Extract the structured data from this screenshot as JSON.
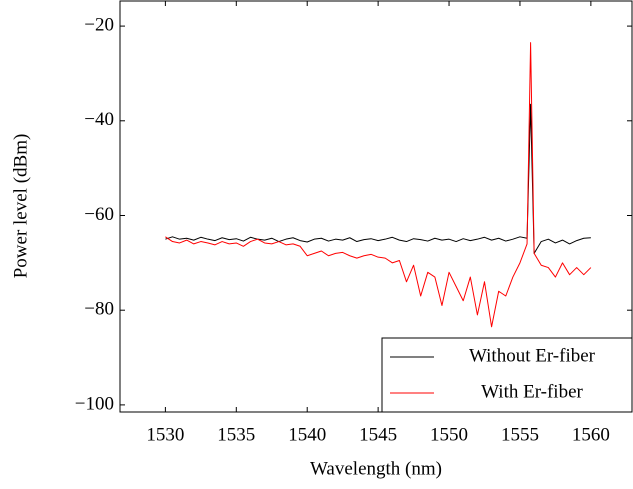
{
  "chart_data": {
    "type": "line",
    "xlabel": "Wavelength (nm)",
    "ylabel": "Power level (dBm)",
    "x": [
      1530,
      1530.5,
      1531,
      1531.5,
      1532,
      1532.5,
      1533,
      1533.5,
      1534,
      1534.5,
      1535,
      1535.5,
      1536,
      1536.5,
      1537,
      1537.5,
      1538,
      1538.5,
      1539,
      1539.5,
      1540,
      1540.5,
      1541,
      1541.5,
      1542,
      1542.5,
      1543,
      1543.5,
      1544,
      1544.5,
      1545,
      1545.5,
      1546,
      1546.5,
      1547,
      1547.5,
      1548,
      1548.5,
      1549,
      1549.5,
      1550,
      1550.5,
      1551,
      1551.5,
      1552,
      1552.5,
      1553,
      1553.5,
      1554,
      1554.5,
      1555,
      1555.5,
      1555.75,
      1556,
      1556.5,
      1557,
      1557.5,
      1558,
      1558.5,
      1559,
      1559.5,
      1560
    ],
    "series": [
      {
        "name": "Without Er-fiber",
        "color": "#000000",
        "values": [
          -65,
          -64.5,
          -65,
          -64.8,
          -65.2,
          -64.6,
          -65,
          -65.3,
          -64.7,
          -65.1,
          -64.9,
          -65.4,
          -64.6,
          -65,
          -65.2,
          -64.8,
          -65.5,
          -65,
          -64.7,
          -65.3,
          -65.6,
          -65,
          -64.8,
          -65.4,
          -65,
          -65.2,
          -64.7,
          -65.5,
          -65.1,
          -64.9,
          -65.3,
          -65,
          -64.6,
          -65.2,
          -65.5,
          -64.9,
          -65.1,
          -65.4,
          -64.8,
          -65.2,
          -65,
          -65.5,
          -64.9,
          -65.3,
          -65,
          -64.6,
          -65.2,
          -64.8,
          -65.4,
          -65,
          -64.5,
          -64.8,
          -36.5,
          -68,
          -65.5,
          -65,
          -65.8,
          -65.2,
          -66,
          -65.3,
          -64.8,
          -64.7
        ]
      },
      {
        "name": "With Er-fiber",
        "color": "#ff0000",
        "values": [
          -64.5,
          -65.5,
          -65.8,
          -65.2,
          -66,
          -65.5,
          -65.8,
          -66.2,
          -65.5,
          -66,
          -65.8,
          -66.5,
          -65.5,
          -65,
          -65.8,
          -66,
          -65.5,
          -66.2,
          -66,
          -66.5,
          -68.5,
          -68,
          -67.5,
          -68.5,
          -68,
          -67.8,
          -68.5,
          -69,
          -68.5,
          -68.2,
          -68.8,
          -69,
          -70,
          -69.5,
          -74,
          -70.5,
          -77,
          -72,
          -73,
          -79,
          -72,
          -75,
          -78,
          -73,
          -81,
          -74,
          -83.5,
          -76,
          -77,
          -73,
          -70,
          -66,
          -23.5,
          -68,
          -70.5,
          -71,
          -73,
          -70,
          -72.5,
          -71,
          -72.5,
          -71
        ]
      }
    ],
    "xlim": [
      1526.8,
      1562.9
    ],
    "xticks": [
      1530,
      1535,
      1540,
      1545,
      1550,
      1555,
      1560
    ],
    "ylim": [
      -101.5,
      -14.7
    ],
    "yticks": [
      {
        "value": -100,
        "label": "−100"
      },
      {
        "value": -80,
        "label": "−80"
      },
      {
        "value": -60,
        "label": "−60"
      },
      {
        "value": -40,
        "label": "−40"
      },
      {
        "value": -20,
        "label": "−20"
      }
    ],
    "legend": "lower right"
  }
}
